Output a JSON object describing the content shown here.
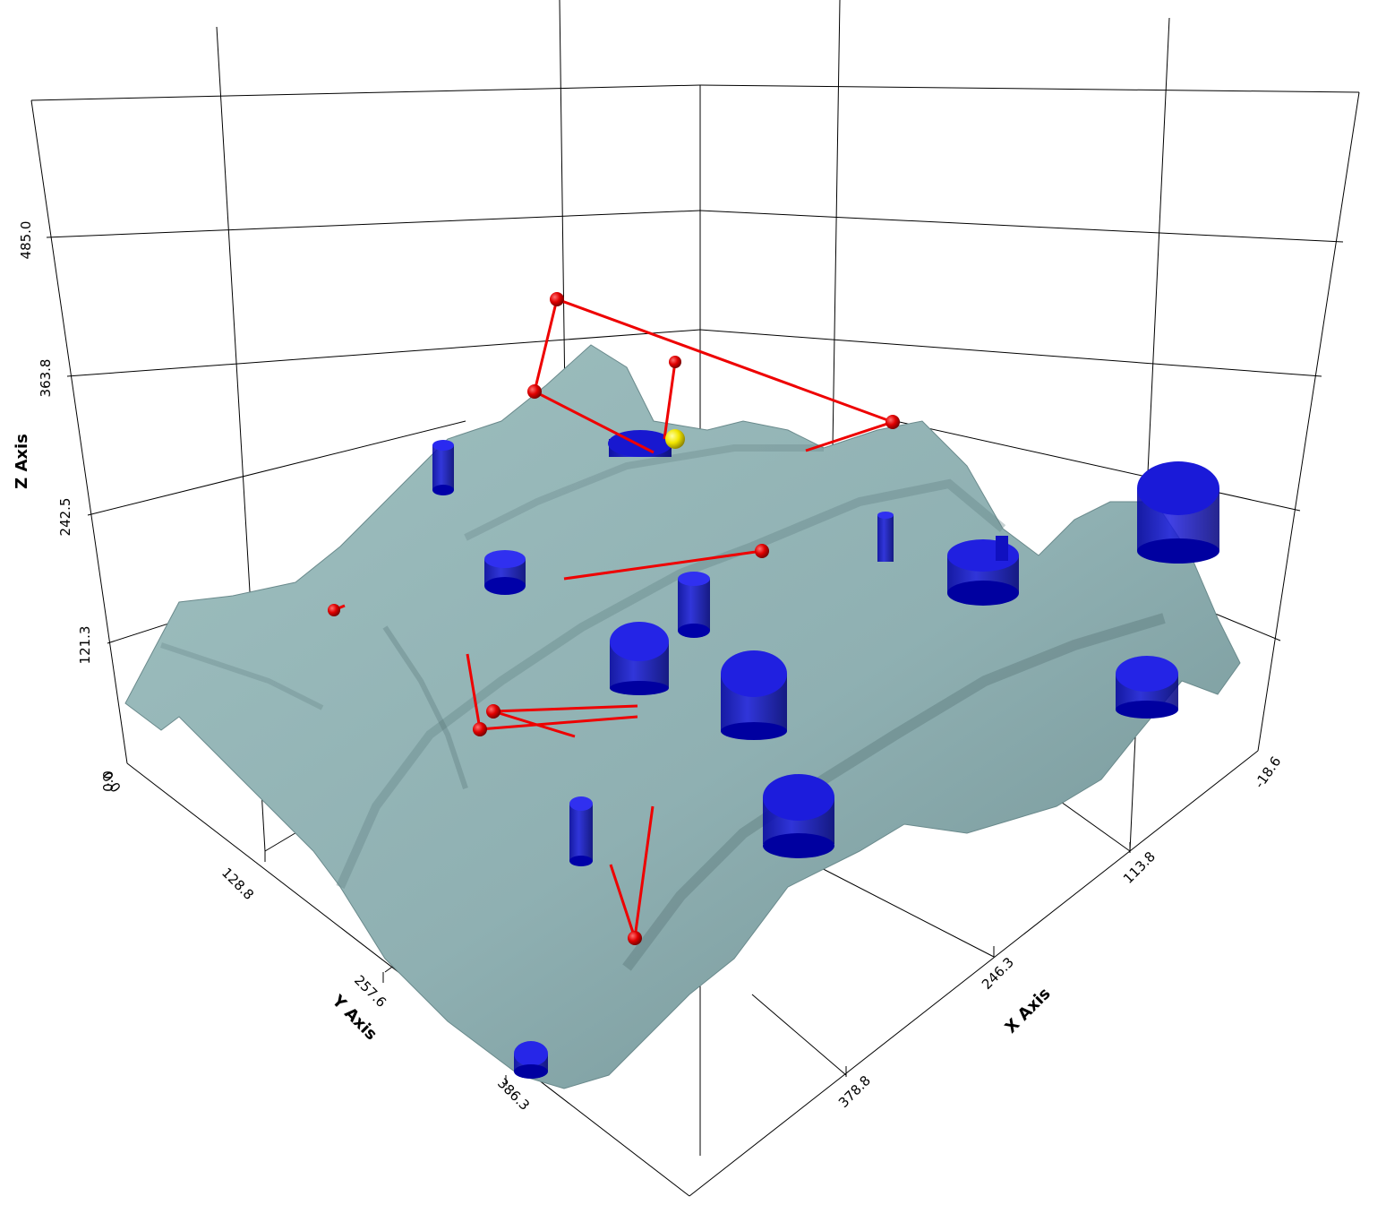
{
  "scene": {
    "background": "#ffffff",
    "terrain_color": "#93b5b5",
    "terrain_shadow": "#5f7d80",
    "cylinder_color": "#1010d0",
    "marker_color": "#e00000",
    "line_color": "#ee0000",
    "highlight_color": "#f2e600"
  },
  "axes": {
    "x": {
      "title": "X Axis",
      "ticks": [
        "-18.6",
        "113.8",
        "246.3",
        "378.8"
      ]
    },
    "y": {
      "title": "Y Axis",
      "ticks": [
        "0.0",
        "128.8",
        "257.6",
        "386.3"
      ]
    },
    "z": {
      "title": "Z Axis",
      "ticks": [
        "0.0",
        "121.3",
        "242.5",
        "363.8",
        "485.0"
      ]
    }
  }
}
